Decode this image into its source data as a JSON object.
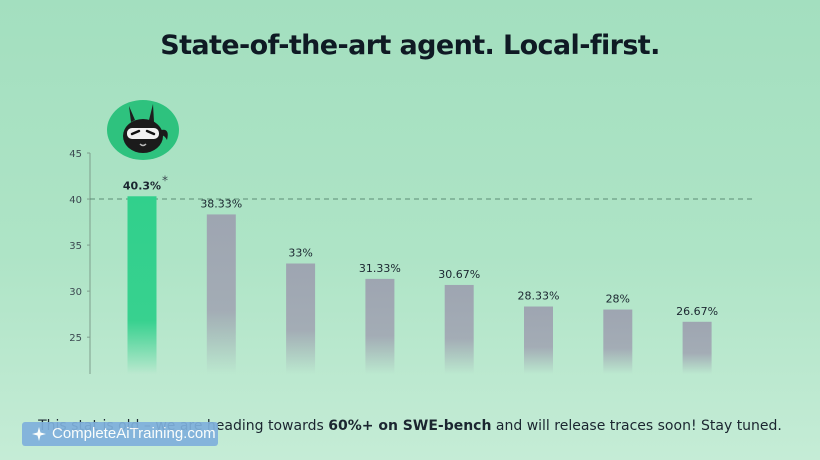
{
  "title": "State-of-the-art agent. Local-first.",
  "chart_data": {
    "type": "bar",
    "categories": [
      "",
      "",
      "",
      "",
      "",
      "",
      "",
      ""
    ],
    "values": [
      40.3,
      38.33,
      33,
      31.33,
      30.67,
      28.33,
      28,
      26.67
    ],
    "data_labels": [
      "40.3%",
      "38.33%",
      "33%",
      "31.33%",
      "30.67%",
      "28.33%",
      "28%",
      "26.67%"
    ],
    "highlight_suffix": "*",
    "y_ticks": [
      25,
      30,
      35,
      40,
      45
    ],
    "ylim": [
      21,
      45
    ],
    "reference_line": 40,
    "grid": false,
    "colors": {
      "highlight": "#2fcf8c",
      "other": "#9ea5b1",
      "reference": "#4a7a62"
    }
  },
  "avatar": {
    "icon": "ninja-llama-mascot-icon"
  },
  "note": {
    "prefix": "This stat is old – we are heading towards ",
    "bold": "60%+ on SWE-bench",
    "suffix": " and will release traces soon! Stay tuned."
  },
  "watermark": {
    "text": "CompleteAiTraining.com",
    "icon": "sparkle-logo-icon"
  }
}
